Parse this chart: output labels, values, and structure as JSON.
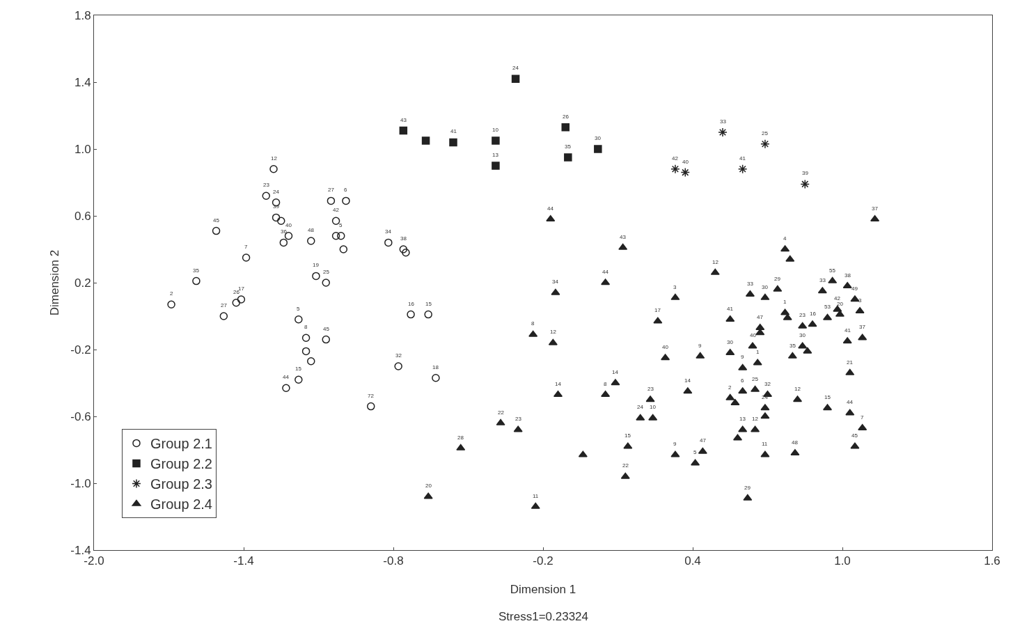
{
  "chart_data": {
    "type": "scatter",
    "xlabel": "Dimension 1",
    "ylabel": "Dimension 2",
    "annotations": [
      "Stress1=0.23324",
      {
        "text": "2",
        "x": -1.69,
        "y": 0.07
      },
      {
        "text": "35",
        "x": -1.59,
        "y": 0.21
      },
      {
        "text": "45",
        "x": -1.51,
        "y": 0.51
      },
      {
        "text": "7",
        "x": -1.39,
        "y": 0.35
      },
      {
        "text": "27",
        "x": -1.48,
        "y": 0.0
      },
      {
        "text": "26",
        "x": -1.43,
        "y": 0.08
      },
      {
        "text": "17",
        "x": -1.41,
        "y": 0.1
      },
      {
        "text": "12",
        "x": -1.28,
        "y": 0.88
      },
      {
        "text": "23",
        "x": -1.31,
        "y": 0.72
      },
      {
        "text": "24",
        "x": -1.27,
        "y": 0.68
      },
      {
        "text": "39",
        "x": -1.27,
        "y": 0.59
      },
      {
        "text": "36",
        "x": -1.24,
        "y": 0.44
      },
      {
        "text": "40",
        "x": -1.22,
        "y": 0.48
      },
      {
        "text": "48",
        "x": -1.13,
        "y": 0.45
      },
      {
        "text": "27",
        "x": -1.05,
        "y": 0.69
      },
      {
        "text": "6",
        "x": -0.99,
        "y": 0.69
      },
      {
        "text": "42",
        "x": -1.03,
        "y": 0.57
      },
      {
        "text": "5",
        "x": -1.01,
        "y": 0.48
      },
      {
        "text": "34",
        "x": -0.82,
        "y": 0.44
      },
      {
        "text": "38",
        "x": -0.76,
        "y": 0.4
      },
      {
        "text": "19",
        "x": -1.11,
        "y": 0.24
      },
      {
        "text": "25",
        "x": -1.07,
        "y": 0.2
      },
      {
        "text": "5",
        "x": -1.18,
        "y": -0.02
      },
      {
        "text": "8",
        "x": -1.15,
        "y": -0.13
      },
      {
        "text": "45",
        "x": -1.07,
        "y": -0.14
      },
      {
        "text": "15",
        "x": -1.18,
        "y": -0.38
      },
      {
        "text": "44",
        "x": -1.23,
        "y": -0.43
      },
      {
        "text": "16",
        "x": -0.73,
        "y": 0.01
      },
      {
        "text": "15",
        "x": -0.66,
        "y": 0.01
      },
      {
        "text": "32",
        "x": -0.78,
        "y": -0.3
      },
      {
        "text": "18",
        "x": -0.63,
        "y": -0.37
      },
      {
        "text": "72",
        "x": -0.89,
        "y": -0.54
      },
      {
        "text": "24",
        "x": -0.31,
        "y": 1.42
      },
      {
        "text": "43",
        "x": -0.76,
        "y": 1.11
      },
      {
        "text": "41",
        "x": -0.56,
        "y": 1.04
      },
      {
        "text": "10",
        "x": -0.39,
        "y": 1.05
      },
      {
        "text": "13",
        "x": -0.39,
        "y": 0.9
      },
      {
        "text": "26",
        "x": -0.11,
        "y": 1.13
      },
      {
        "text": "35",
        "x": -0.1,
        "y": 0.95
      },
      {
        "text": "30",
        "x": 0.02,
        "y": 1.0
      },
      {
        "text": "33",
        "x": 0.52,
        "y": 1.1
      },
      {
        "text": "25",
        "x": 0.69,
        "y": 1.03
      },
      {
        "text": "42",
        "x": 0.33,
        "y": 0.88
      },
      {
        "text": "40",
        "x": 0.37,
        "y": 0.86
      },
      {
        "text": "41",
        "x": 0.6,
        "y": 0.88
      },
      {
        "text": "39",
        "x": 0.85,
        "y": 0.79
      },
      {
        "text": "44",
        "x": -0.17,
        "y": 0.58
      },
      {
        "text": "43",
        "x": 0.12,
        "y": 0.41
      },
      {
        "text": "34",
        "x": -0.15,
        "y": 0.14
      },
      {
        "text": "44",
        "x": 0.05,
        "y": 0.2
      },
      {
        "text": "3",
        "x": 0.33,
        "y": 0.11
      },
      {
        "text": "12",
        "x": 0.49,
        "y": 0.26
      },
      {
        "text": "17",
        "x": 0.26,
        "y": -0.03
      },
      {
        "text": "8",
        "x": -0.24,
        "y": -0.11
      },
      {
        "text": "12",
        "x": -0.16,
        "y": -0.16
      },
      {
        "text": "40",
        "x": 0.29,
        "y": -0.25
      },
      {
        "text": "9",
        "x": 0.43,
        "y": -0.24
      },
      {
        "text": "14",
        "x": 0.09,
        "y": -0.4
      },
      {
        "text": "8",
        "x": 0.05,
        "y": -0.47
      },
      {
        "text": "14",
        "x": -0.14,
        "y": -0.47
      },
      {
        "text": "23",
        "x": 0.23,
        "y": -0.5
      },
      {
        "text": "24",
        "x": 0.19,
        "y": -0.61
      },
      {
        "text": "10",
        "x": 0.24,
        "y": -0.61
      },
      {
        "text": "14",
        "x": 0.38,
        "y": -0.45
      },
      {
        "text": "22",
        "x": -0.37,
        "y": -0.64
      },
      {
        "text": "23",
        "x": -0.3,
        "y": -0.68
      },
      {
        "text": "28",
        "x": -0.53,
        "y": -0.79
      },
      {
        "text": "15",
        "x": 0.14,
        "y": -0.78
      },
      {
        "text": "22",
        "x": 0.13,
        "y": -0.96
      },
      {
        "text": "20",
        "x": -0.66,
        "y": -1.08
      },
      {
        "text": "11",
        "x": -0.23,
        "y": -1.14
      },
      {
        "text": "9",
        "x": 0.33,
        "y": -0.83
      },
      {
        "text": "5",
        "x": 0.41,
        "y": -0.88
      },
      {
        "text": "47",
        "x": 0.44,
        "y": -0.81
      },
      {
        "text": "37",
        "x": 1.13,
        "y": 0.58
      },
      {
        "text": "4",
        "x": 0.77,
        "y": 0.4
      },
      {
        "text": "33",
        "x": 0.63,
        "y": 0.13
      },
      {
        "text": "30",
        "x": 0.69,
        "y": 0.11
      },
      {
        "text": "29",
        "x": 0.74,
        "y": 0.16
      },
      {
        "text": "41",
        "x": 0.55,
        "y": -0.02
      },
      {
        "text": "47",
        "x": 0.67,
        "y": -0.07
      },
      {
        "text": "1",
        "x": 0.77,
        "y": 0.02
      },
      {
        "text": "23",
        "x": 0.84,
        "y": -0.06
      },
      {
        "text": "16",
        "x": 0.88,
        "y": -0.05
      },
      {
        "text": "33",
        "x": 0.92,
        "y": 0.15
      },
      {
        "text": "55",
        "x": 0.96,
        "y": 0.21
      },
      {
        "text": "38",
        "x": 1.02,
        "y": 0.18
      },
      {
        "text": "49",
        "x": 1.05,
        "y": 0.1
      },
      {
        "text": "42",
        "x": 0.98,
        "y": 0.04
      },
      {
        "text": "20",
        "x": 0.99,
        "y": 0.01
      },
      {
        "text": "53",
        "x": 0.94,
        "y": -0.01
      },
      {
        "text": "3",
        "x": 1.07,
        "y": 0.03
      },
      {
        "text": "41",
        "x": 1.02,
        "y": -0.15
      },
      {
        "text": "37",
        "x": 1.08,
        "y": -0.13
      },
      {
        "text": "21",
        "x": 1.03,
        "y": -0.34
      },
      {
        "text": "30",
        "x": 0.55,
        "y": -0.22
      },
      {
        "text": "40",
        "x": 0.64,
        "y": -0.18
      },
      {
        "text": "1",
        "x": 0.66,
        "y": -0.28
      },
      {
        "text": "9",
        "x": 0.6,
        "y": -0.31
      },
      {
        "text": "35",
        "x": 0.8,
        "y": -0.24
      },
      {
        "text": "30",
        "x": 0.84,
        "y": -0.18
      },
      {
        "text": "2",
        "x": 0.55,
        "y": -0.49
      },
      {
        "text": "6",
        "x": 0.6,
        "y": -0.45
      },
      {
        "text": "25",
        "x": 0.65,
        "y": -0.44
      },
      {
        "text": "32",
        "x": 0.7,
        "y": -0.47
      },
      {
        "text": "24",
        "x": 0.69,
        "y": -0.55
      },
      {
        "text": "13",
        "x": 0.6,
        "y": -0.68
      },
      {
        "text": "12",
        "x": 0.65,
        "y": -0.68
      },
      {
        "text": "11",
        "x": 0.69,
        "y": -0.83
      },
      {
        "text": "48",
        "x": 0.81,
        "y": -0.82
      },
      {
        "text": "29",
        "x": 0.62,
        "y": -1.09
      },
      {
        "text": "12",
        "x": 0.82,
        "y": -0.5
      },
      {
        "text": "15",
        "x": 0.94,
        "y": -0.55
      },
      {
        "text": "44",
        "x": 1.03,
        "y": -0.58
      },
      {
        "text": "7",
        "x": 1.08,
        "y": -0.67
      },
      {
        "text": "45",
        "x": 1.05,
        "y": -0.78
      }
    ],
    "xlim": [
      -2.0,
      1.6
    ],
    "xticks": [
      {
        "value": -2.0,
        "label": "-2.0"
      },
      -1.4,
      -0.8,
      -0.2,
      0.4,
      {
        "value": 1.0,
        "label": "1.0"
      },
      1.6
    ],
    "ylim": [
      -1.4,
      1.8
    ],
    "yticks": [
      -1.4,
      {
        "value": -1.0,
        "label": "-1.0"
      },
      -0.6,
      -0.2,
      0.2,
      0.6,
      {
        "value": 1.0,
        "label": "1.0"
      },
      1.4,
      1.8
    ],
    "legend": "bottom left",
    "series": [
      {
        "name": "Group 2.1",
        "color": "#222222",
        "marker": "circle",
        "x": [
          -1.69,
          -1.59,
          -1.51,
          -1.39,
          -1.48,
          -1.43,
          -1.41,
          -1.28,
          -1.31,
          -1.27,
          -1.27,
          -1.25,
          -1.24,
          -1.22,
          -1.13,
          -1.05,
          -0.99,
          -1.03,
          -1.03,
          -1.01,
          -1.0,
          -0.82,
          -0.76,
          -0.75,
          -1.11,
          -1.07,
          -1.18,
          -1.15,
          -1.15,
          -1.13,
          -1.07,
          -1.18,
          -1.23,
          -0.73,
          -0.66,
          -0.78,
          -0.63,
          -0.89
        ],
        "values": [
          0.07,
          0.21,
          0.51,
          0.35,
          0.0,
          0.08,
          0.1,
          0.88,
          0.72,
          0.68,
          0.59,
          0.57,
          0.44,
          0.48,
          0.45,
          0.69,
          0.69,
          0.57,
          0.48,
          0.48,
          0.4,
          0.44,
          0.4,
          0.38,
          0.24,
          0.2,
          -0.02,
          -0.13,
          -0.21,
          -0.27,
          -0.14,
          -0.38,
          -0.43,
          0.01,
          0.01,
          -0.3,
          -0.37,
          -0.54
        ]
      },
      {
        "name": "Group 2.2",
        "color": "#222222",
        "marker": "square",
        "x": [
          -0.31,
          -0.76,
          -0.67,
          -0.56,
          -0.39,
          -0.39,
          -0.11,
          -0.1,
          0.02
        ],
        "values": [
          1.42,
          1.11,
          1.05,
          1.04,
          1.05,
          0.9,
          1.13,
          0.95,
          1.0
        ]
      },
      {
        "name": "Group 2.3",
        "color": "#222222",
        "marker": "cross",
        "x": [
          0.52,
          0.69,
          0.33,
          0.37,
          0.6,
          0.85
        ],
        "values": [
          1.1,
          1.03,
          0.88,
          0.86,
          0.88,
          0.79
        ]
      },
      {
        "name": "Group 2.4",
        "color": "#222222",
        "marker": "triangle",
        "x": [
          -0.17,
          0.12,
          -0.15,
          0.05,
          0.33,
          0.49,
          0.26,
          -0.24,
          -0.16,
          0.29,
          0.43,
          0.09,
          0.05,
          -0.14,
          0.23,
          0.19,
          0.24,
          0.38,
          -0.37,
          -0.3,
          -0.53,
          -0.04,
          0.14,
          0.13,
          -0.66,
          -0.23,
          0.33,
          0.41,
          0.44,
          1.13,
          0.77,
          0.79,
          0.63,
          0.69,
          0.74,
          0.55,
          0.67,
          0.67,
          0.77,
          0.78,
          0.84,
          0.88,
          0.92,
          0.96,
          1.02,
          1.05,
          0.98,
          0.99,
          0.94,
          1.07,
          1.02,
          1.08,
          1.03,
          0.55,
          0.64,
          0.66,
          0.6,
          0.8,
          0.84,
          0.86,
          0.55,
          0.57,
          0.6,
          0.65,
          0.7,
          0.69,
          0.69,
          0.6,
          0.65,
          0.58,
          0.69,
          0.81,
          0.62,
          0.82,
          0.94,
          1.03,
          1.08,
          1.05
        ],
        "values": [
          0.58,
          0.41,
          0.14,
          0.2,
          0.11,
          0.26,
          -0.03,
          -0.11,
          -0.16,
          -0.25,
          -0.24,
          -0.4,
          -0.47,
          -0.47,
          -0.5,
          -0.61,
          -0.61,
          -0.45,
          -0.64,
          -0.68,
          -0.79,
          -0.83,
          -0.78,
          -0.96,
          -1.08,
          -1.14,
          -0.83,
          -0.88,
          -0.81,
          0.58,
          0.4,
          0.34,
          0.13,
          0.11,
          0.16,
          -0.02,
          -0.07,
          -0.1,
          0.02,
          -0.01,
          -0.06,
          -0.05,
          0.15,
          0.21,
          0.18,
          0.1,
          0.04,
          0.01,
          -0.01,
          0.03,
          -0.15,
          -0.13,
          -0.34,
          -0.22,
          -0.18,
          -0.28,
          -0.31,
          -0.24,
          -0.18,
          -0.21,
          -0.49,
          -0.52,
          -0.45,
          -0.44,
          -0.47,
          -0.55,
          -0.6,
          -0.68,
          -0.68,
          -0.73,
          -0.83,
          -0.82,
          -1.09,
          -0.5,
          -0.55,
          -0.58,
          -0.67,
          -0.78
        ]
      }
    ]
  }
}
